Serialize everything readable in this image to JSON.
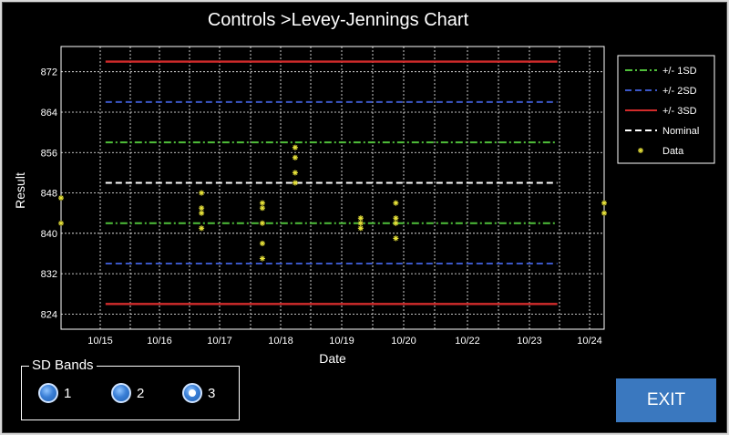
{
  "window": {
    "title": "Controls >Levey-Jennings Chart"
  },
  "sd_bands": {
    "title": "SD Bands",
    "options": [
      {
        "label": "1",
        "checked": false
      },
      {
        "label": "2",
        "checked": false
      },
      {
        "label": "3",
        "checked": true
      }
    ]
  },
  "exit_label": "EXIT",
  "chart_data": {
    "type": "scatter",
    "xlabel": "Date",
    "ylabel": "Result",
    "xlim": [
      "2024-10-14 12:00",
      "2024-10-24 04:00"
    ],
    "ylim": [
      821,
      877
    ],
    "x_tick_labels": [
      "10/15",
      "10/16",
      "10/17",
      "10/18",
      "10/19",
      "10/20",
      "10/22",
      "10/23",
      "10/24"
    ],
    "y_ticks": [
      824,
      832,
      840,
      848,
      856,
      864,
      872
    ],
    "grid": true,
    "legend": "right",
    "colors": {
      "sd1": "#4fbf3a",
      "sd2": "#3b57c8",
      "sd3": "#d22b2b",
      "nominal": "#ffffff",
      "data": "#e8e33a"
    },
    "lines": [
      {
        "name": "+/- 1SD",
        "style": "dashdot",
        "color": "#4fbf3a",
        "y": [
          842,
          858
        ],
        "x_range": [
          "2024-10-15 07:00",
          "2024-10-23 08:00"
        ]
      },
      {
        "name": "+/- 2SD",
        "style": "dash",
        "color": "#3b57c8",
        "y": [
          834,
          866
        ],
        "x_range": [
          "2024-10-15 07:00",
          "2024-10-23 08:00"
        ]
      },
      {
        "name": "+/- 3SD",
        "style": "solid",
        "color": "#d22b2b",
        "y": [
          826,
          874
        ],
        "x_range": [
          "2024-10-15 07:00",
          "2024-10-23 08:00"
        ]
      },
      {
        "name": "Nominal",
        "style": "dash",
        "color": "#ffffff",
        "y": [
          850
        ],
        "x_range": [
          "2024-10-15 07:00",
          "2024-10-23 08:00"
        ]
      }
    ],
    "series": [
      {
        "name": "Data",
        "points": [
          {
            "x": "2024-10-14 12:00",
            "y": 847
          },
          {
            "x": "2024-10-14 12:00",
            "y": 842
          },
          {
            "x": "2024-10-17 00:00",
            "y": 848
          },
          {
            "x": "2024-10-17 00:00",
            "y": 845
          },
          {
            "x": "2024-10-17 00:00",
            "y": 844
          },
          {
            "x": "2024-10-17 00:00",
            "y": 841
          },
          {
            "x": "2024-10-18 02:00",
            "y": 846
          },
          {
            "x": "2024-10-18 02:00",
            "y": 845
          },
          {
            "x": "2024-10-18 02:00",
            "y": 842
          },
          {
            "x": "2024-10-18 02:00",
            "y": 838
          },
          {
            "x": "2024-10-18 02:00",
            "y": 835
          },
          {
            "x": "2024-10-18 16:00",
            "y": 857
          },
          {
            "x": "2024-10-18 16:00",
            "y": 855
          },
          {
            "x": "2024-10-18 16:00",
            "y": 852
          },
          {
            "x": "2024-10-18 16:00",
            "y": 850
          },
          {
            "x": "2024-10-19 20:00",
            "y": 843
          },
          {
            "x": "2024-10-19 20:00",
            "y": 842
          },
          {
            "x": "2024-10-19 20:00",
            "y": 841
          },
          {
            "x": "2024-10-20 11:00",
            "y": 846
          },
          {
            "x": "2024-10-20 11:00",
            "y": 843
          },
          {
            "x": "2024-10-20 11:00",
            "y": 842
          },
          {
            "x": "2024-10-20 11:00",
            "y": 839
          },
          {
            "x": "2024-10-24 04:00",
            "y": 846
          },
          {
            "x": "2024-10-24 04:00",
            "y": 844
          }
        ]
      }
    ]
  }
}
